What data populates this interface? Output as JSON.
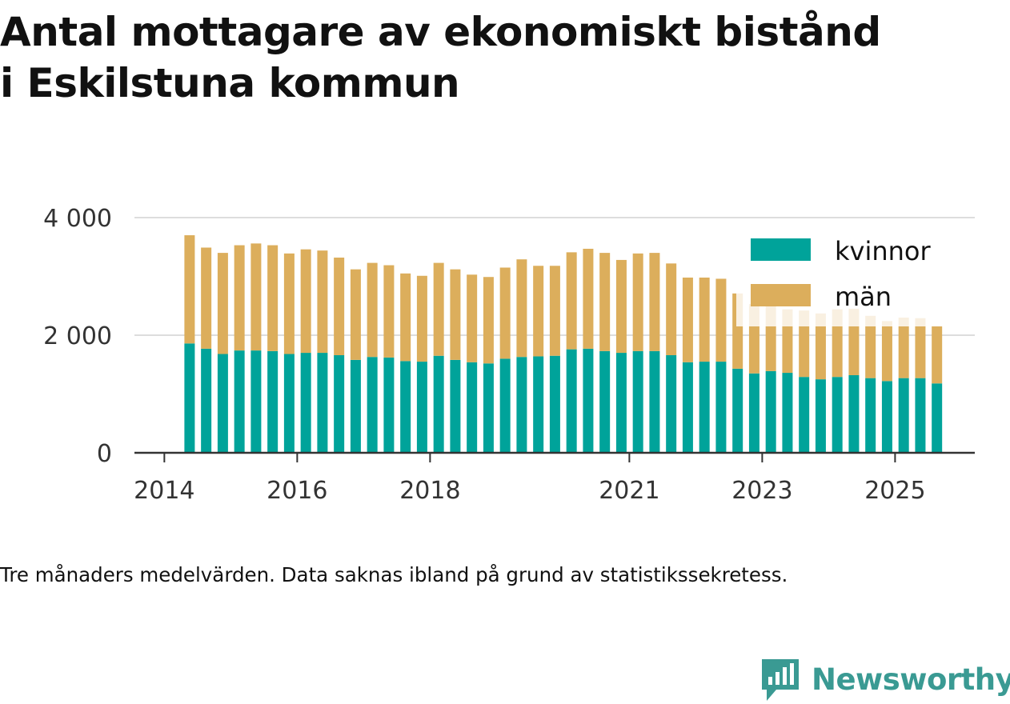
{
  "header": {
    "title_line1": "Antal mottagare av ekonomiskt bistånd",
    "title_line2": "i Eskilstuna kommun"
  },
  "caption": "Tre månaders medelvärden. Data saknas ibland på grund av statistikssekretess.",
  "brand": {
    "name": "Newsworthy",
    "icon": "newsworthy-logo-icon",
    "color": "#3a9a93"
  },
  "chart_data": {
    "type": "bar",
    "stacked": true,
    "y_ticks": [
      0,
      2000,
      4000
    ],
    "y_tick_labels": [
      "0",
      "2 000",
      "4 000"
    ],
    "ylim": [
      0,
      4000
    ],
    "x_ticks": [
      {
        "value": 2014.0,
        "label": "2014"
      },
      {
        "value": 2016.0,
        "label": "2016"
      },
      {
        "value": 2018.0,
        "label": "2018"
      },
      {
        "value": 2021.0,
        "label": "2021"
      },
      {
        "value": 2023.0,
        "label": "2023"
      },
      {
        "value": 2025.0,
        "label": "2025"
      }
    ],
    "xlim": [
      2013.55,
      2026.2
    ],
    "x": [
      2014.38,
      2014.63,
      2014.88,
      2015.13,
      2015.38,
      2015.63,
      2015.88,
      2016.13,
      2016.38,
      2016.63,
      2016.88,
      2017.13,
      2017.38,
      2017.63,
      2017.88,
      2018.13,
      2018.38,
      2018.63,
      2018.88,
      2019.13,
      2019.38,
      2019.63,
      2019.88,
      2020.13,
      2020.38,
      2020.63,
      2020.88,
      2021.13,
      2021.38,
      2021.63,
      2021.88,
      2022.13,
      2022.38,
      2022.63,
      2022.88,
      2023.13,
      2023.38,
      2023.63,
      2023.88,
      2024.13,
      2024.38,
      2024.63,
      2024.88,
      2025.13,
      2025.38,
      2025.63
    ],
    "legend": {
      "position": "top-right"
    },
    "grid": true,
    "series": [
      {
        "name": "kvinnor",
        "color": "#00a39a",
        "values": [
          1860,
          1770,
          1680,
          1740,
          1740,
          1730,
          1680,
          1700,
          1700,
          1660,
          1580,
          1630,
          1620,
          1560,
          1550,
          1650,
          1580,
          1540,
          1520,
          1600,
          1630,
          1640,
          1650,
          1760,
          1770,
          1730,
          1700,
          1730,
          1730,
          1660,
          1540,
          1550,
          1550,
          1430,
          1350,
          1390,
          1360,
          1290,
          1250,
          1290,
          1320,
          1270,
          1220,
          1270,
          1270,
          1180
        ]
      },
      {
        "name": "män",
        "color": "#dcae5c",
        "values": [
          1840,
          1720,
          1720,
          1790,
          1820,
          1800,
          1710,
          1760,
          1740,
          1660,
          1540,
          1600,
          1570,
          1490,
          1460,
          1580,
          1540,
          1490,
          1470,
          1550,
          1660,
          1540,
          1530,
          1650,
          1700,
          1670,
          1580,
          1660,
          1670,
          1560,
          1440,
          1430,
          1410,
          1280,
          1180,
          1170,
          1080,
          1130,
          1120,
          1150,
          1130,
          1060,
          1020,
          1030,
          1020,
          970
        ]
      }
    ]
  }
}
